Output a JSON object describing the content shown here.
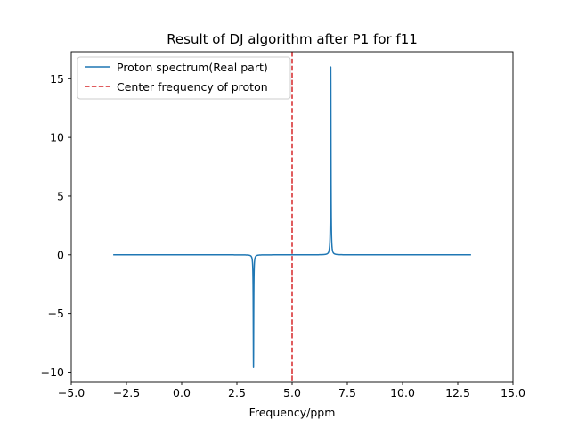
{
  "chart_data": {
    "type": "line",
    "title": "Result of DJ algorithm after P1 for f11",
    "xlabel": "Frequency/ppm",
    "ylabel": "",
    "xlim": [
      -5.0,
      15.0
    ],
    "ylim": [
      -10.8,
      17.3
    ],
    "xticks": [
      -5.0,
      -2.5,
      0.0,
      2.5,
      5.0,
      7.5,
      10.0,
      12.5,
      15.0
    ],
    "xtick_labels": [
      "−5.0",
      "−2.5",
      "0.0",
      "2.5",
      "5.0",
      "7.5",
      "10.0",
      "12.5",
      "15.0"
    ],
    "yticks": [
      -10,
      -5,
      0,
      5,
      10,
      15
    ],
    "ytick_labels": [
      "−10",
      "−5",
      "0",
      "5",
      "10",
      "15"
    ],
    "grid": false,
    "legend_position": "upper-left",
    "series": [
      {
        "name": "Proton spectrum(Real part)",
        "style": "solid",
        "color": "#1f77b4",
        "x_range": [
          -3.1,
          13.1
        ],
        "peaks": [
          {
            "center": 3.25,
            "height": -9.6,
            "width": 0.012
          },
          {
            "center": 6.75,
            "height": 16.0,
            "width": 0.012
          }
        ]
      },
      {
        "name": "Center frequency of proton",
        "style": "dashed",
        "color": "#d62728",
        "vline_x": 5.0
      }
    ]
  }
}
